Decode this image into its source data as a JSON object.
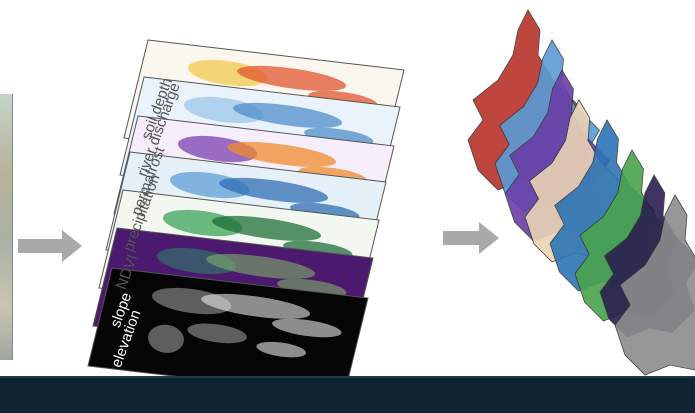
{
  "layers": [
    {
      "name": "soil depth",
      "fill": "#fbf6ee",
      "accent": "#f2c94c",
      "accent2": "#e0552f",
      "text_color": "#555555"
    },
    {
      "name": "river discharge",
      "fill": "#eaf3fb",
      "accent": "#9cc7ea",
      "accent2": "#4f8ec9",
      "text_color": "#555555"
    },
    {
      "name": "permafrost",
      "fill": "#f6eefa",
      "accent": "#7a3fb0",
      "accent2": "#f08a2c",
      "text_color": "#555555"
    },
    {
      "name": "precipitation",
      "fill": "#e6f0f9",
      "accent": "#5f9fd6",
      "accent2": "#2f6fb3",
      "text_color": "#555555"
    },
    {
      "name": "NDVI",
      "fill": "#f2f8ef",
      "accent": "#3aa35a",
      "accent2": "#1f6f3a",
      "text_color": "#555555"
    },
    {
      "name": "slope",
      "fill": "#4b1a6e",
      "accent": "#2e7d6b",
      "accent2": "#7fb069",
      "text_color": "#ffffff"
    },
    {
      "name": "elevation",
      "fill": "#050505",
      "accent": "#9a9a9a",
      "accent2": "#e8e8e8",
      "text_color": "#ffffff"
    }
  ],
  "basin_colors": [
    "#b8322a",
    "#5a9bd5",
    "#6a3fa8",
    "#e9d3b4",
    "#2d74b5",
    "#4aa34e",
    "#2b1f4f",
    "#8c8c8c"
  ],
  "arrow_color": "#a9a9a9",
  "footer_color": "#0f2430"
}
